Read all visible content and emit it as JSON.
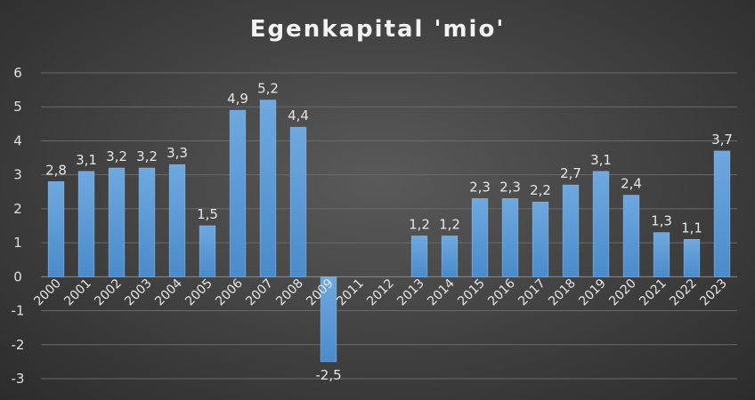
{
  "chart_data": {
    "type": "bar",
    "title": "Egenkapital 'mio'",
    "categories": [
      "2000",
      "2001",
      "2002",
      "2003",
      "2004",
      "2005",
      "2006",
      "2007",
      "2008",
      "2009",
      "2011",
      "2012",
      "2013",
      "2014",
      "2015",
      "2016",
      "2017",
      "2018",
      "2019",
      "2020",
      "2021",
      "2022",
      "2023"
    ],
    "values": [
      2.8,
      3.1,
      3.2,
      3.2,
      3.3,
      1.5,
      4.9,
      5.2,
      4.4,
      -2.5,
      null,
      null,
      1.2,
      1.2,
      2.3,
      2.3,
      2.2,
      2.7,
      3.1,
      2.4,
      1.3,
      1.1,
      3.7
    ],
    "data_labels": [
      "2,8",
      "3,1",
      "3,2",
      "3,2",
      "3,3",
      "1,5",
      "4,9",
      "5,2",
      "4,4",
      "-2,5",
      "",
      "",
      "1,2",
      "1,2",
      "2,3",
      "2,3",
      "2,2",
      "2,7",
      "3,1",
      "2,4",
      "1,3",
      "1,1",
      "3,7"
    ],
    "y_ticks": [
      "6",
      "5",
      "4",
      "3",
      "2",
      "1",
      "0",
      "-1",
      "-2",
      "-3"
    ],
    "ylim": [
      -3,
      6
    ],
    "xlabel": "",
    "ylabel": "",
    "grid": true,
    "legend": "none",
    "colors": {
      "bar": "#5b9bd5",
      "bar_light": "#74aee6",
      "grid": "#6a6a6a",
      "text": "#e6e6e6"
    }
  }
}
